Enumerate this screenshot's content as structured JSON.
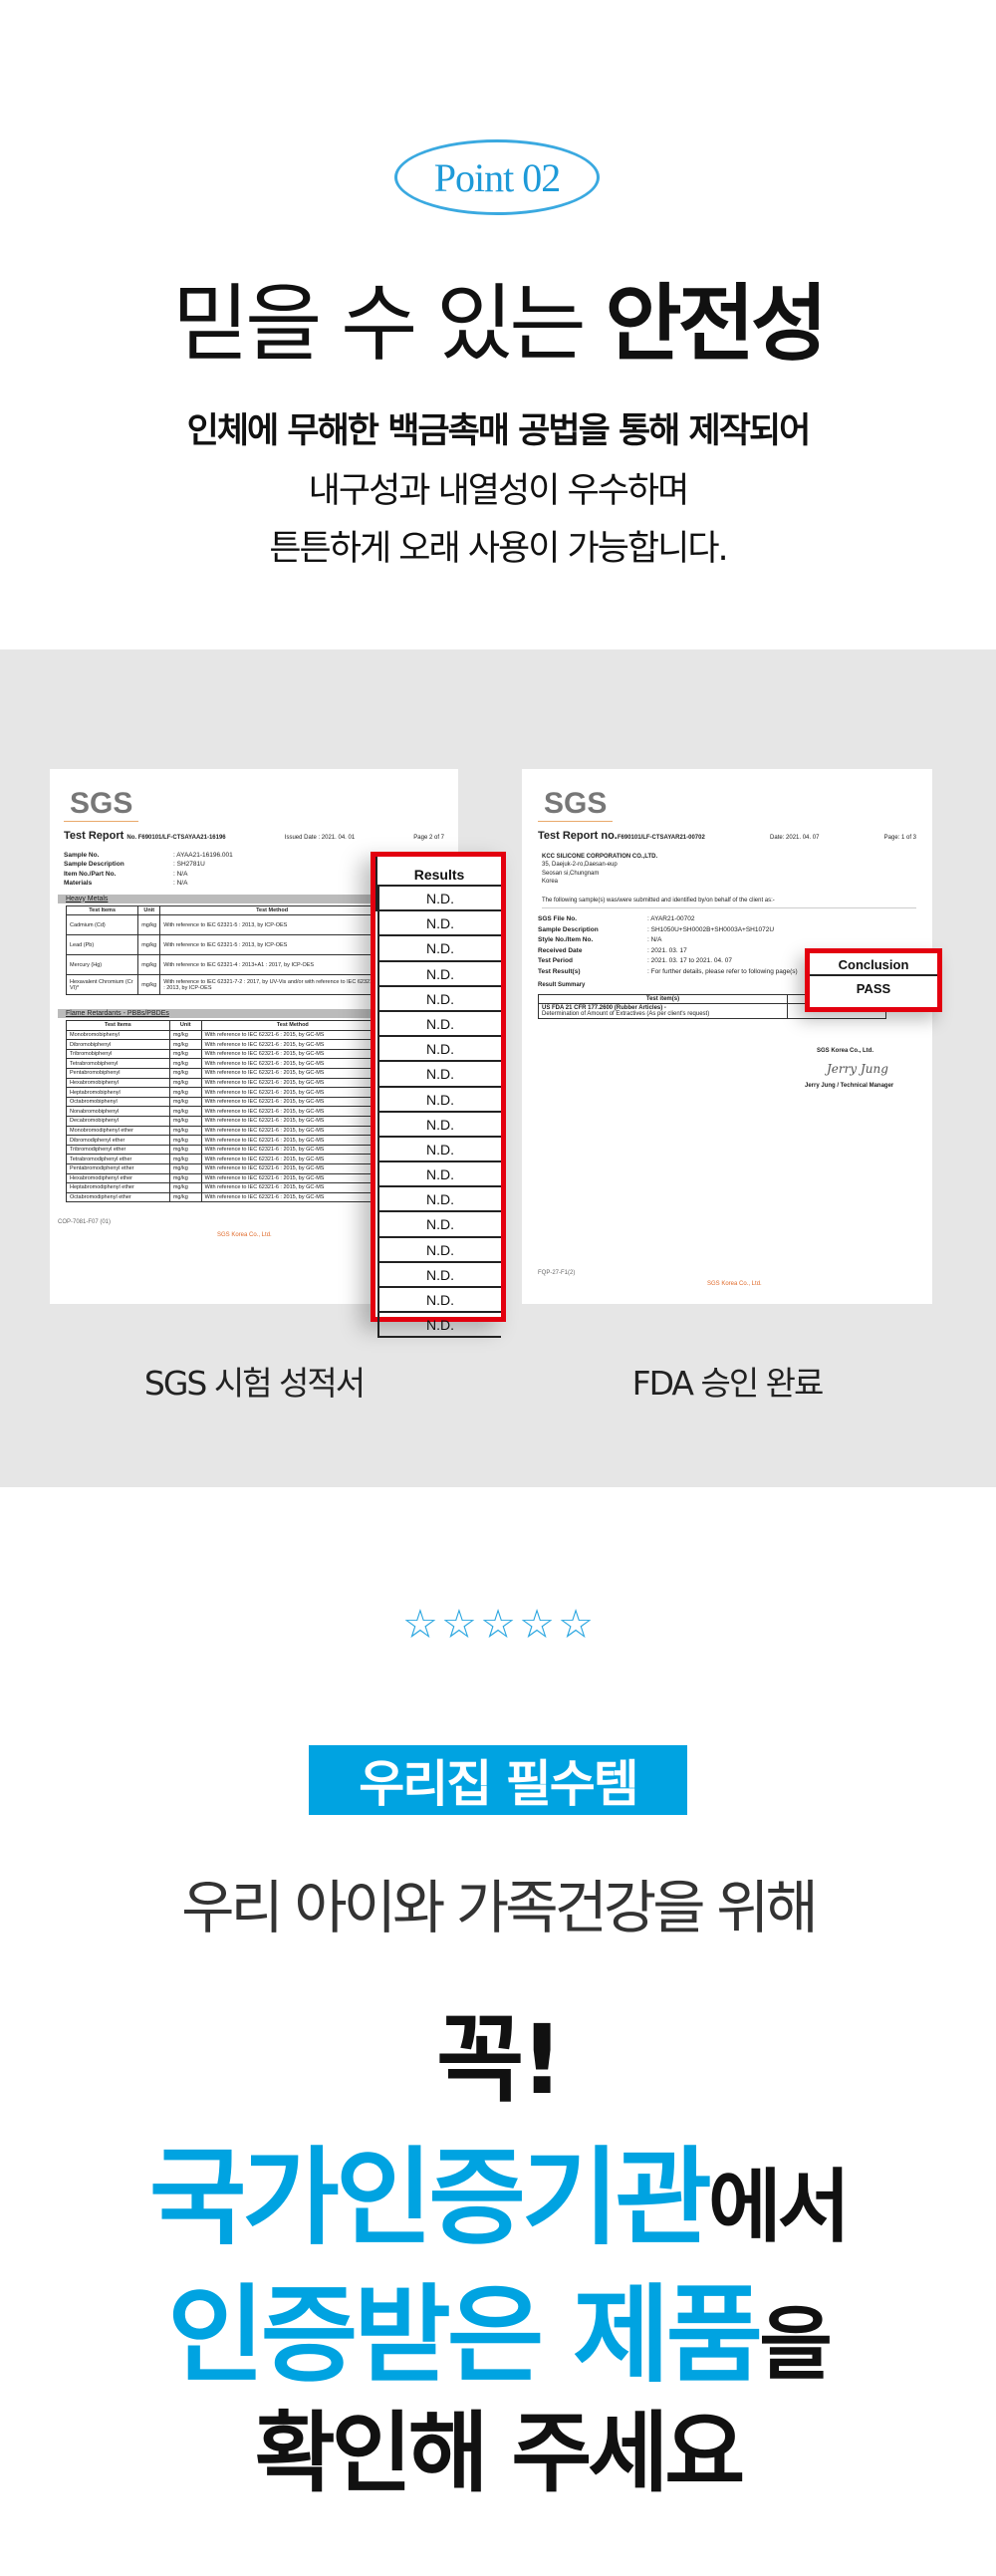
{
  "point_badge": "Point 02",
  "headline": {
    "regular": "믿을 수 있는 ",
    "bold": "안전성"
  },
  "body_lines": [
    "인체에 무해한 백금촉매 공법을 통해 제작되어",
    "내구성과 내열성이 우수하며",
    "튼튼하게 오래 사용이 가능합니다."
  ],
  "colors": {
    "accent": "#00a3e1",
    "highlight_border": "#e3000f",
    "band": "#e6e6e6"
  },
  "sgs_doc": {
    "logo": "SGS",
    "title": "Test Report",
    "report_no": "No. F690101/LF-CTSAYAA21-16196",
    "issued_date": "Issued Date : 2021. 04. 01",
    "page": "Page 2 of 7",
    "meta": [
      [
        "Sample No.",
        ": AYAA21-16196.001"
      ],
      [
        "Sample Description",
        ": SH2781U"
      ],
      [
        "Item No./Part No.",
        ": N/A"
      ],
      [
        "Materials",
        ": N/A"
      ]
    ],
    "section1": "Heavy Metals",
    "headers": [
      "Test Items",
      "Unit",
      "Test Method"
    ],
    "heavy_rows": [
      [
        "Cadmium (Cd)",
        "mg/kg",
        "With reference to IEC 62321-5 : 2013, by ICP-OES"
      ],
      [
        "Lead (Pb)",
        "mg/kg",
        "With reference to IEC 62321-5 : 2013, by ICP-OES"
      ],
      [
        "Mercury (Hg)",
        "mg/kg",
        "With reference to IEC 62321-4 : 2013+A1 : 2017, by ICP-OES"
      ],
      [
        "Hexavalent Chromium (Cr VI)*",
        "mg/kg",
        "With reference to IEC 62321-7-2 : 2017, by UV-Vis and/or with reference to IEC 62321-5 : 2013, by ICP-OES"
      ]
    ],
    "section2": "Flame Retardants - PBBs/PBDEs",
    "flame_items": [
      "Monobromobiphenyl",
      "Dibromobiphenyl",
      "Tribromobiphenyl",
      "Tetrabromobiphenyl",
      "Pentabromobiphenyl",
      "Hexabromobiphenyl",
      "Heptabromobiphenyl",
      "Octabromobiphenyl",
      "Nonabromobiphenyl",
      "Decabromobiphenyl",
      "Monobromodiphenyl ether",
      "Dibromodiphenyl ether",
      "Tribromodiphenyl ether",
      "Tetrabromodiphenyl ether",
      "Pentabromodiphenyl ether",
      "Hexabromodiphenyl ether",
      "Heptabromodiphenyl ether",
      "Octabromodiphenyl ether"
    ],
    "flame_unit": "mg/kg",
    "flame_method": "With reference to IEC 62321-6 : 2015, by GC-MS",
    "footer_code": "COP-7081-F07 (01)",
    "footer_company": "SGS Korea Co., Ltd."
  },
  "results": {
    "header": "Results",
    "values": [
      "N.D.",
      "N.D.",
      "N.D.",
      "N.D.",
      "N.D.",
      "N.D.",
      "N.D.",
      "N.D.",
      "N.D.",
      "N.D.",
      "N.D.",
      "N.D.",
      "N.D.",
      "N.D.",
      "N.D.",
      "N.D.",
      "N.D.",
      "N.D."
    ]
  },
  "fda_doc": {
    "logo": "SGS",
    "title": "Test Report no.",
    "report_no": "F690101/LF-CTSAYAR21-00702",
    "date": "Date: 2021. 04. 07",
    "page": "Page: 1 of 3",
    "client": [
      "KCC SILICONE CORPORATION CO.,LTD.",
      "35, Daejuk-2-ro,Daesan-eup",
      "Seosan si,Chungnam",
      "Korea"
    ],
    "intro": "The following sample(s) was/were submitted and identified by/on behalf of the client as:-",
    "meta": [
      [
        "SGS File No.",
        ": AYAR21-00702"
      ],
      [
        "Sample Description",
        ": SH1050U+SH0002B+SH0003A+SH1072U"
      ],
      [
        "Style No./Item No.",
        ": N/A"
      ],
      [
        "Received Date",
        ": 2021. 03. 17"
      ],
      [
        "Test Period",
        ": 2021. 03. 17  to  2021. 04. 07"
      ],
      [
        "Test Result(s)",
        ": For further details, please refer to following page(s)"
      ]
    ],
    "summary_label": "Result Summary",
    "test_item_header": "Test item(s)",
    "test_item_1": "US FDA 21 CFR 177.2600 (Rubber Articles) -",
    "test_item_2": "Determination of Amount of Extractives (As per client's request)",
    "signer_company": "SGS Korea Co., Ltd.",
    "signature": "Jerry Jung",
    "signer": "Jerry Jung / Technical Manager",
    "footer_code": "FQP-27-F1(2)",
    "footer_company": "SGS Korea Co., Ltd."
  },
  "conclusion": {
    "header": "Conclusion",
    "value": "PASS"
  },
  "captions": [
    "SGS 시험 성적서",
    "FDA 승인 완료"
  ],
  "rating": {
    "stars": 5,
    "max": 5
  },
  "pill_label": "우리집 필수템",
  "subline": "우리 아이와 가족건강을 위해",
  "cta": {
    "line1": "꼭!",
    "line2_blue": "국가인증기관",
    "line2_black": "에서",
    "line3_blue": "인증받은 제품",
    "line3_black": "을",
    "line4": "확인해 주세요"
  }
}
